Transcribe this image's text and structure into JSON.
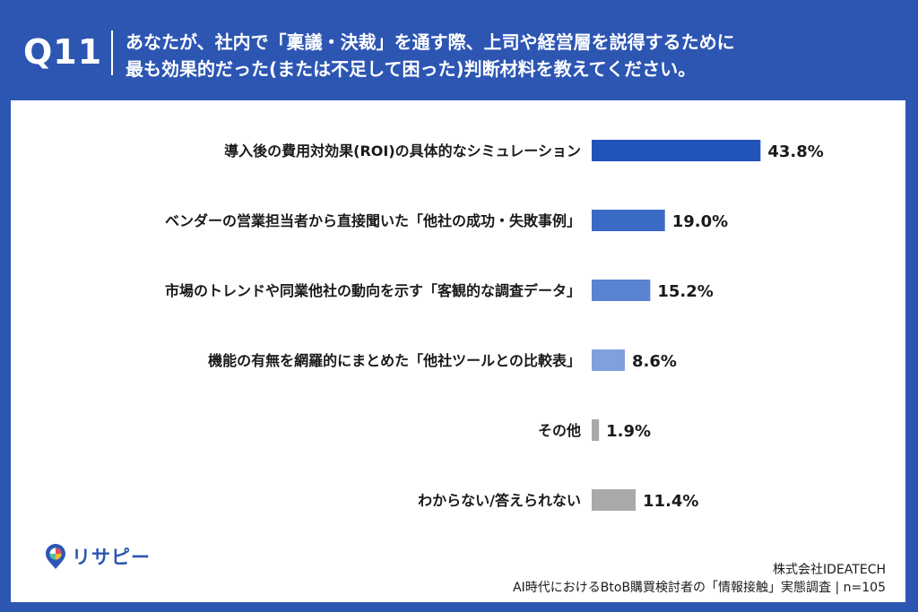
{
  "header": {
    "qnum": "Q11",
    "question_line1": "あなたが、社内で「稟議・決裁」を通す際、上司や経営層を説得するために",
    "question_line2": "最も効果的だった(または不足して困った)判断材料を教えてください。"
  },
  "chart_data": {
    "type": "bar",
    "orientation": "horizontal",
    "unit": "%",
    "categories": [
      "導入後の費用対効果(ROI)の具体的なシミュレーション",
      "ベンダーの営業担当者から直接聞いた「他社の成功・失敗事例」",
      "市場のトレンドや同業他社の動向を示す「客観的な調査データ」",
      "機能の有無を網羅的にまとめた「他社ツールとの比較表」",
      "その他",
      "わからない/答えられない"
    ],
    "values": [
      43.8,
      19.0,
      15.2,
      8.6,
      1.9,
      11.4
    ],
    "value_labels": [
      "43.8%",
      "19.0%",
      "15.2%",
      "8.6%",
      "1.9%",
      "11.4%"
    ],
    "bar_colors": [
      "#2253b8",
      "#3a6ac6",
      "#5a83d2",
      "#7ea0dc",
      "#a9a9a9",
      "#a9a9a9"
    ],
    "xlim": [
      0,
      100
    ],
    "grid": false,
    "legend": "none"
  },
  "logo": {
    "text": "リサピー",
    "icon": "pin-icon"
  },
  "footer": {
    "company": "株式会社IDEATECH",
    "survey": "AI時代におけるBtoB購買検討者の「情報接触」実態調査 | n=105"
  },
  "colors": {
    "accent": "#2d56b3",
    "card": "#ffffff"
  }
}
